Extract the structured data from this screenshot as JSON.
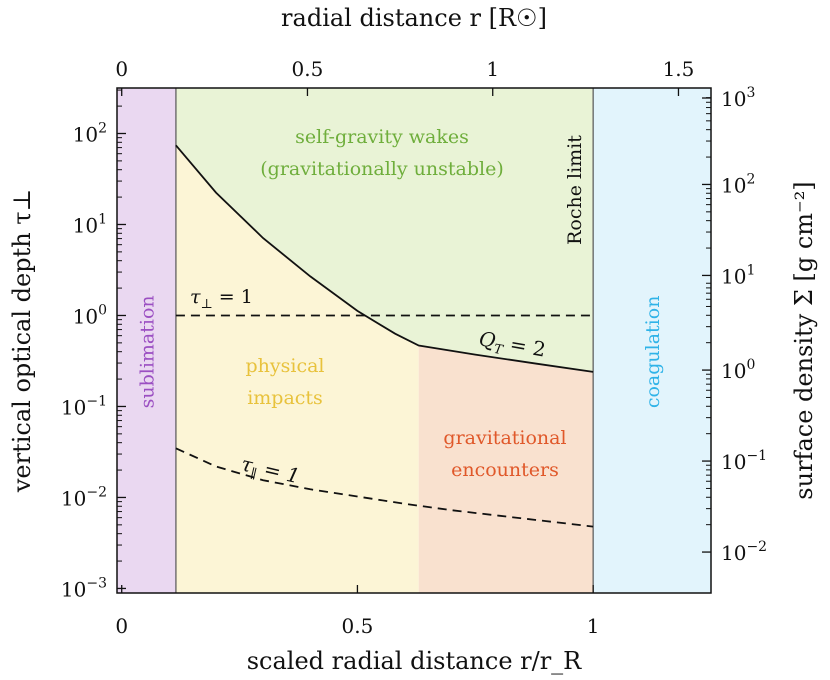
{
  "chart_data": {
    "type": "area",
    "x_axis": {
      "label": "scaled radial distance r/r_R",
      "range": [
        -0.01,
        1.25
      ],
      "ticks": [
        {
          "v": 0,
          "label": "0"
        },
        {
          "v": 0.5,
          "label": "0.5"
        },
        {
          "v": 1,
          "label": "1"
        }
      ]
    },
    "x_top_axis": {
      "label": "radial distance r [R☉]",
      "ticks": [
        {
          "x": 0,
          "label": "0"
        },
        {
          "x": 0.394,
          "label": "0.5"
        },
        {
          "x": 0.787,
          "label": "1"
        },
        {
          "x": 1.181,
          "label": "1.5"
        }
      ]
    },
    "y_axis": {
      "label": "vertical optical depth τ⊥",
      "scale": "log",
      "range_log10": [
        -3.05,
        2.5
      ],
      "ticks": [
        {
          "e": 2,
          "base": "10",
          "sup": "2"
        },
        {
          "e": 1,
          "base": "10",
          "sup": "1"
        },
        {
          "e": 0,
          "base": "10",
          "sup": "0"
        },
        {
          "e": -1,
          "base": "10",
          "sup": "−1"
        },
        {
          "e": -2,
          "base": "10",
          "sup": "−2"
        },
        {
          "e": -3,
          "base": "10",
          "sup": "−3"
        }
      ]
    },
    "y_right_axis": {
      "label": "surface density Σ [g cm⁻²]",
      "scale": "log",
      "ticks": [
        {
          "e": 2.39,
          "base": "10",
          "sup": "3"
        },
        {
          "e": 1.44,
          "base": "10",
          "sup": "2"
        },
        {
          "e": 0.44,
          "base": "10",
          "sup": "1"
        },
        {
          "e": -0.6,
          "base": "10",
          "sup": "0"
        },
        {
          "e": -1.6,
          "base": "10",
          "sup": "−1"
        },
        {
          "e": -2.6,
          "base": "10",
          "sup": "−2"
        }
      ]
    },
    "regions": [
      {
        "name": "sublimation",
        "label": "sublimation",
        "x": [
          -0.01,
          0.115
        ],
        "color": "#ead8f1",
        "text_color": "#9b4fc2"
      },
      {
        "name": "coagulation",
        "label": "coagulation",
        "x": [
          1.0,
          1.25
        ],
        "color": "#e2f4fc",
        "text_color": "#2fb3e8"
      },
      {
        "name": "self-gravity-wakes",
        "label_lines": [
          "self-gravity wakes",
          "(gravitationally unstable)"
        ],
        "color": "#e9f3d6",
        "text_color": "#6fae3c"
      },
      {
        "name": "physical-impacts",
        "label_lines": [
          "physical",
          "impacts"
        ],
        "color": "#fcf5d6",
        "text_color": "#e8c23c"
      },
      {
        "name": "gravitational-encounters",
        "label_lines": [
          "gravitational",
          "encounters"
        ],
        "x": [
          0.63,
          1.0
        ],
        "color": "#f9e1cf",
        "text_color": "#e0582a"
      }
    ],
    "series": [
      {
        "name": "Q_T = 2",
        "label": "QT = 2",
        "style": "solid",
        "points": [
          [
            0.115,
            1.87
          ],
          [
            0.2,
            1.35
          ],
          [
            0.3,
            0.85
          ],
          [
            0.4,
            0.43
          ],
          [
            0.5,
            0.05
          ],
          [
            0.58,
            -0.2
          ],
          [
            0.63,
            -0.33
          ],
          [
            0.75,
            -0.43
          ],
          [
            0.88,
            -0.53
          ],
          [
            1.0,
            -0.62
          ]
        ]
      },
      {
        "name": "tau_perp = 1",
        "label": "τ⊥ = 1",
        "style": "dashed",
        "points": [
          [
            0.115,
            0
          ],
          [
            1.0,
            0
          ]
        ]
      },
      {
        "name": "tau_par = 1",
        "label": "τ∥ = 1",
        "style": "dashed",
        "points": [
          [
            0.115,
            -1.46
          ],
          [
            0.2,
            -1.66
          ],
          [
            0.3,
            -1.81
          ],
          [
            0.4,
            -1.91
          ],
          [
            0.5,
            -1.99
          ],
          [
            0.6,
            -2.07
          ],
          [
            0.7,
            -2.14
          ],
          [
            0.8,
            -2.2
          ],
          [
            0.9,
            -2.26
          ],
          [
            1.0,
            -2.32
          ]
        ]
      }
    ],
    "annotations": [
      {
        "name": "roche-limit",
        "text": "Roche limit",
        "x": 1.0
      }
    ]
  }
}
